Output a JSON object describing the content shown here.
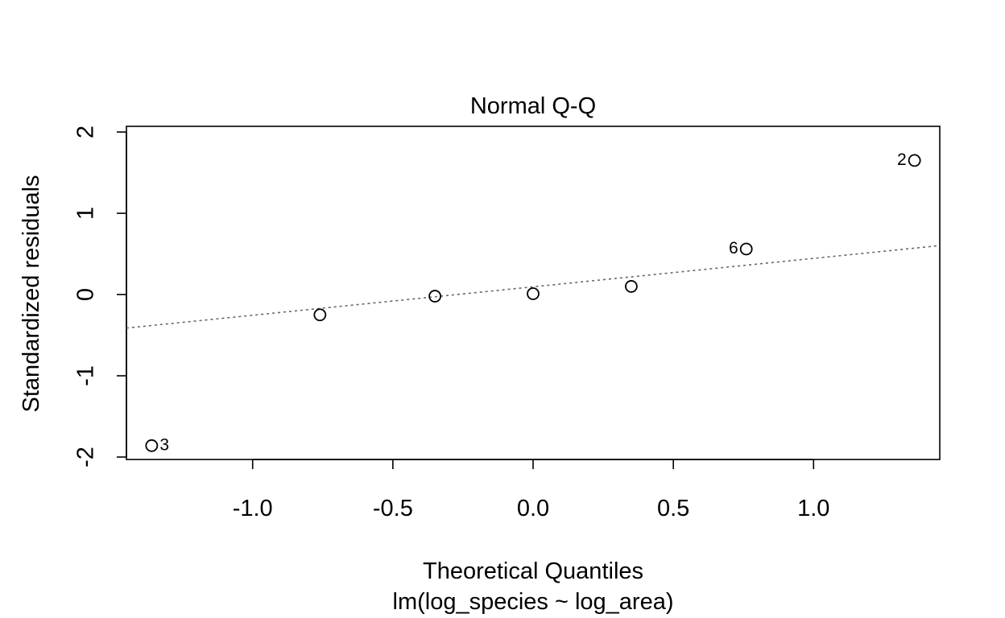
{
  "chart_data": {
    "type": "scatter",
    "title": "Normal Q-Q",
    "xlabel": "Theoretical Quantiles",
    "ylabel": "Standardized residuals",
    "subtitle": "lm(log_species ~ log_area)",
    "xlim": [
      -1.45,
      1.45
    ],
    "ylim": [
      -2.03,
      2.07
    ],
    "xticks": [
      -1.0,
      -0.5,
      0.0,
      0.5,
      1.0
    ],
    "xtick_labels": [
      "-1.0",
      "-0.5",
      "0.0",
      "0.5",
      "1.0"
    ],
    "yticks": [
      -2,
      -1,
      0,
      1,
      2
    ],
    "ytick_labels": [
      "-2",
      "-1",
      "0",
      "1",
      "2"
    ],
    "grid": false,
    "points": [
      {
        "x": -1.36,
        "y": -1.86,
        "label": "3"
      },
      {
        "x": -0.76,
        "y": -0.25,
        "label": ""
      },
      {
        "x": -0.35,
        "y": -0.02,
        "label": ""
      },
      {
        "x": 0.0,
        "y": 0.01,
        "label": ""
      },
      {
        "x": 0.35,
        "y": 0.1,
        "label": ""
      },
      {
        "x": 0.76,
        "y": 0.56,
        "label": "6"
      },
      {
        "x": 1.36,
        "y": 1.65,
        "label": "2"
      }
    ],
    "reference_line": {
      "intercept": 0.095,
      "slope": 0.35,
      "style": "dotted",
      "color": "#666666"
    }
  }
}
